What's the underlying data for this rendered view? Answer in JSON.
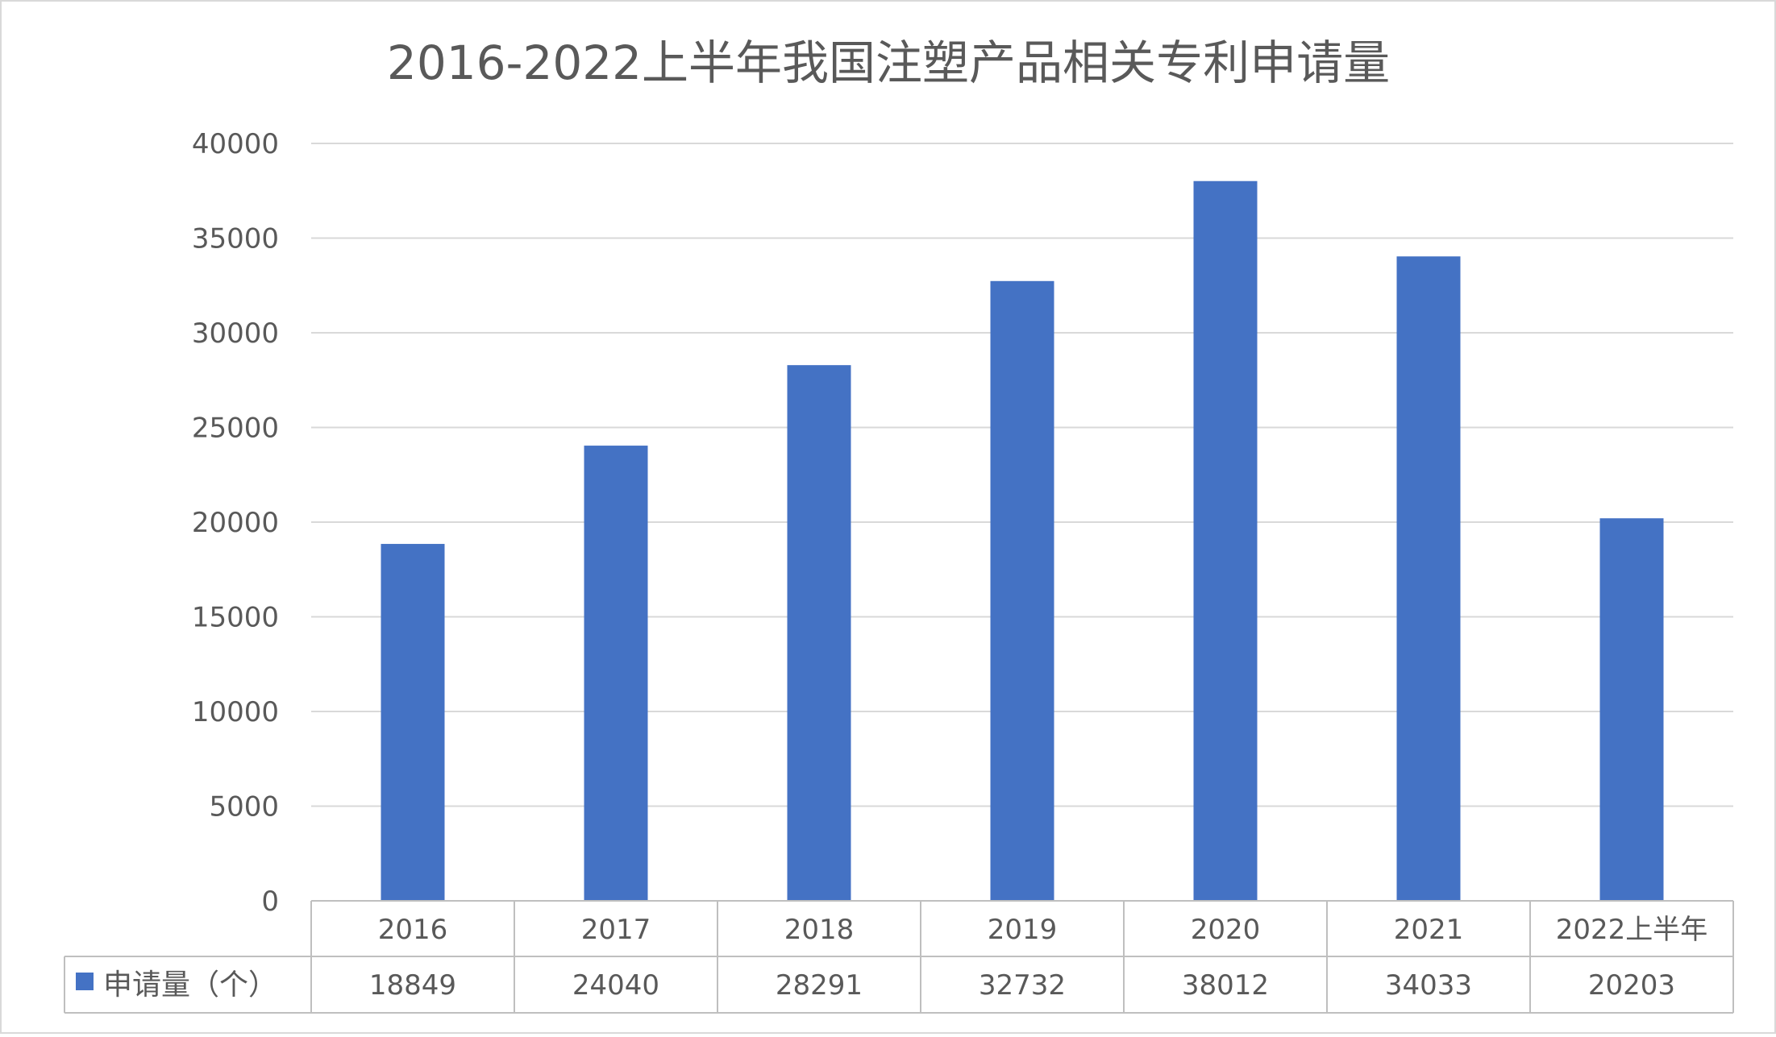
{
  "chart_data": {
    "type": "bar",
    "title": "2016-2022上半年我国注塑产品相关专利申请量",
    "categories": [
      "2016",
      "2017",
      "2018",
      "2019",
      "2020",
      "2021",
      "2022上半年"
    ],
    "series": [
      {
        "name": "申请量（个）",
        "values": [
          18849,
          24040,
          28291,
          32732,
          38012,
          34033,
          20203
        ],
        "color": "#4472C4"
      }
    ],
    "y_ticks": [
      "0",
      "5000",
      "10000",
      "15000",
      "20000",
      "25000",
      "30000",
      "35000",
      "40000"
    ],
    "ylim": [
      0,
      40000
    ],
    "grid": true,
    "legend": "data-table-bottom"
  }
}
